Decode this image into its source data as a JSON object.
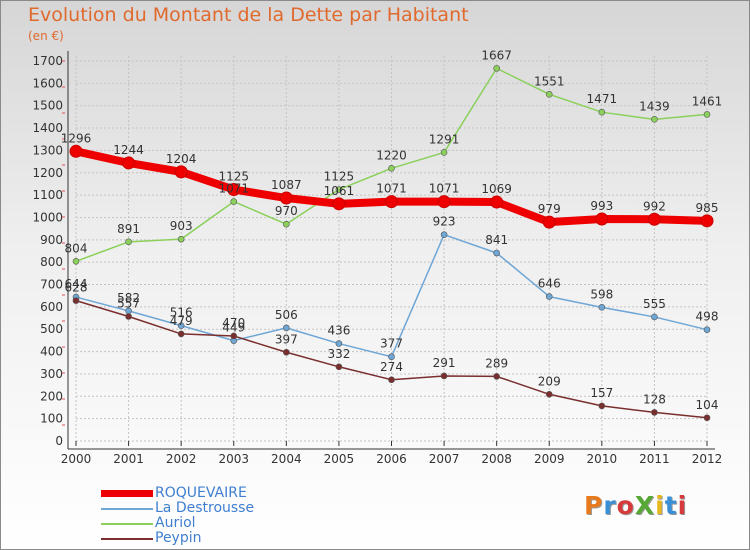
{
  "title": "Evolution du Montant de la Dette par Habitant",
  "unit_label": "(en €)",
  "logo_text": "ProXiti",
  "logo_colors": [
    "#e87a1e",
    "#3a8fd6",
    "#d63a3a",
    "#55a834",
    "#e8b81e",
    "#3a8fd6",
    "#d63a3a"
  ],
  "chart_data": {
    "type": "line",
    "x": [
      "2000",
      "2001",
      "2002",
      "2003",
      "2004",
      "2005",
      "2006",
      "2007",
      "2008",
      "2009",
      "2010",
      "2011",
      "2012"
    ],
    "ylim": [
      0,
      1700
    ],
    "yticks": [
      "0",
      "100",
      "200",
      "300",
      "400",
      "500",
      "600",
      "700",
      "800",
      "900",
      "1000",
      "1100",
      "1200",
      "1300",
      "1400",
      "1500",
      "1600",
      "1700"
    ],
    "grid": true,
    "legend_position": "bottom-left",
    "series": [
      {
        "name": "ROQUEVAIRE",
        "color": "#ee0000",
        "values": [
          1296,
          1244,
          1204,
          1125,
          1087,
          1061,
          1071,
          1071,
          1069,
          979,
          993,
          992,
          985
        ]
      },
      {
        "name": "La Destrousse",
        "color": "#6ea6d6",
        "values": [
          644,
          582,
          516,
          449,
          506,
          436,
          377,
          923,
          841,
          646,
          598,
          555,
          498
        ]
      },
      {
        "name": "Auriol",
        "color": "#8ad05a",
        "values": [
          804,
          891,
          903,
          1071,
          970,
          1125,
          1220,
          1291,
          1667,
          1551,
          1471,
          1439,
          1461
        ]
      },
      {
        "name": "Peypin",
        "color": "#7a2e2e",
        "values": [
          628,
          557,
          479,
          470,
          397,
          332,
          274,
          291,
          289,
          209,
          157,
          128,
          104
        ]
      }
    ]
  }
}
